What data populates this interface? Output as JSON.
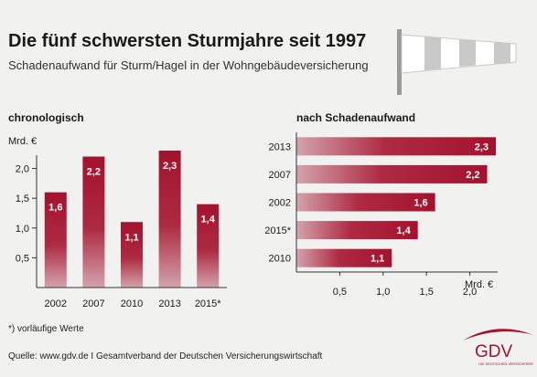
{
  "header": {
    "title": "Die fünf schwersten Sturmjahre seit 1997",
    "subtitle": "Schadenaufwand für Sturm/Hagel in der Wohngebäudeversicherung"
  },
  "chart_data": [
    {
      "type": "bar",
      "title": "chronologisch",
      "ylabel": "Mrd. €",
      "categories": [
        "2002",
        "2007",
        "2010",
        "2013",
        "2015*"
      ],
      "values": [
        1.6,
        2.2,
        1.1,
        2.3,
        1.4
      ],
      "value_labels": [
        "1,6",
        "2,2",
        "1,1",
        "2,3",
        "1,4"
      ],
      "yticks": [
        0.5,
        1.0,
        1.5,
        2.0
      ],
      "ytick_labels": [
        "0,5",
        "1,0",
        "1,5",
        "2,0"
      ],
      "ylim": [
        0,
        2.3
      ],
      "grid": false,
      "bar_color": "#a3122e"
    },
    {
      "type": "bar",
      "orientation": "horizontal",
      "title": "nach Schadenaufwand",
      "xlabel": "Mrd. €",
      "categories": [
        "2013",
        "2007",
        "2002",
        "2015*",
        "2010"
      ],
      "values": [
        2.3,
        2.2,
        1.6,
        1.4,
        1.1
      ],
      "value_labels": [
        "2,3",
        "2,2",
        "1,6",
        "1,4",
        "1,1"
      ],
      "xticks": [
        0.5,
        1.0,
        1.5,
        2.0
      ],
      "xtick_labels": [
        "0,5",
        "1,0",
        "1,5",
        "2,0"
      ],
      "xlim": [
        0,
        2.3
      ],
      "grid": false,
      "bar_color": "#a3122e"
    }
  ],
  "footnote": "*) vorläufige Werte",
  "source": "Quelle: www.gdv.de I Gesamtverband der Deutschen Versicherungswirtschaft",
  "logo": {
    "text": "GDV",
    "tagline": "DIE DEUTSCHEN VERSICHERER",
    "color": "#a3122e"
  },
  "icons": [
    "windsock-icon",
    "gdv-logo"
  ]
}
